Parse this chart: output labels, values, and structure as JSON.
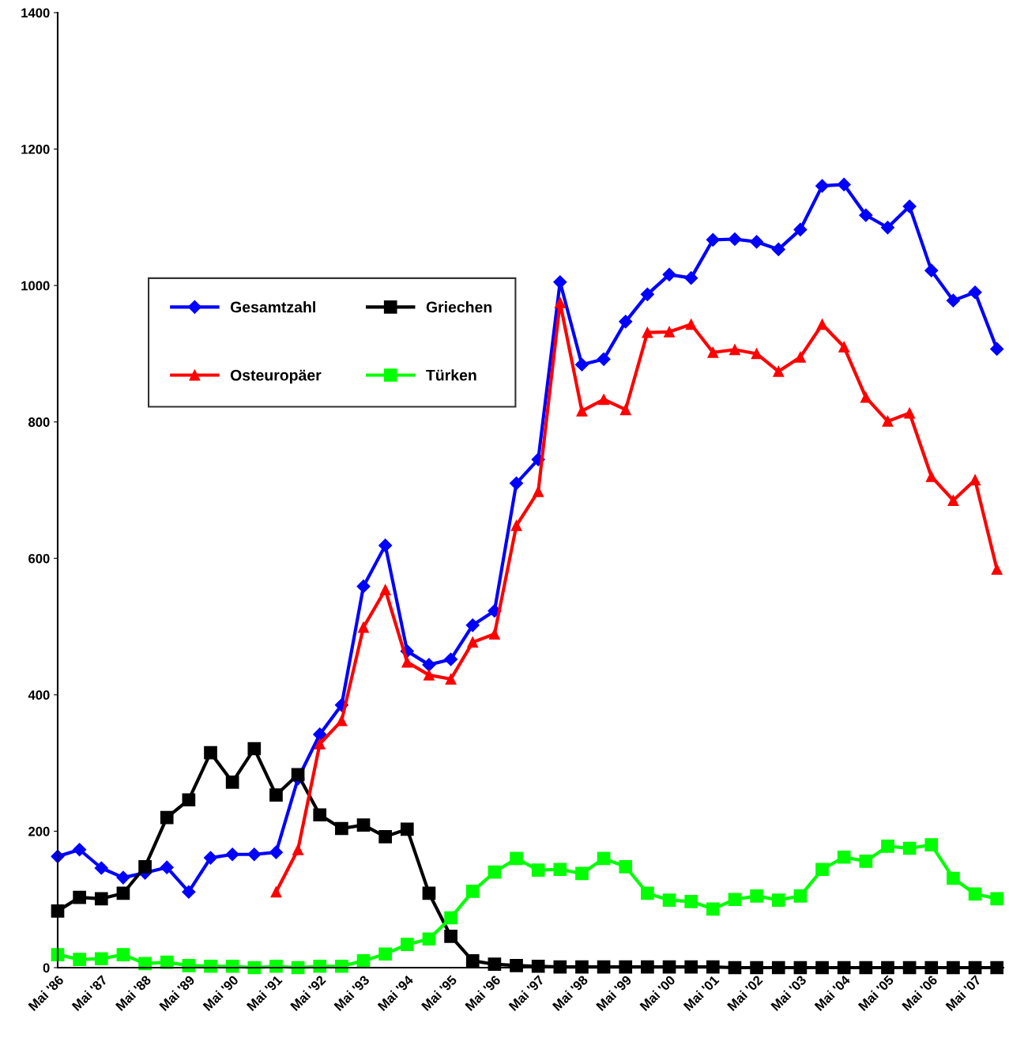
{
  "chart_data": {
    "type": "line",
    "categories": [
      "Mai '86",
      null,
      "Mai '87",
      null,
      "Mai '88",
      null,
      "Mai '89",
      null,
      "Mai '90",
      null,
      "Mai '91",
      null,
      "Mai '92",
      null,
      "Mai '93",
      null,
      "Mai '94",
      null,
      "Mai '95",
      null,
      "Mai '96",
      null,
      "Mai '97",
      null,
      "Mai '98",
      null,
      "Mai '99",
      null,
      "Mai '00",
      null,
      "Mai '01",
      null,
      "Mai '02",
      null,
      "Mai '03",
      null,
      "Mai '04",
      null,
      "Mai '05",
      null,
      "Mai '06",
      null,
      "Mai '07",
      null
    ],
    "series": [
      {
        "name": "Gesamtzahl",
        "color": "#0000ff",
        "marker": "diamond",
        "values": [
          163,
          173,
          146,
          132,
          139,
          147,
          111,
          161,
          166,
          166,
          169,
          277,
          342,
          385,
          559,
          619,
          464,
          444,
          452,
          502,
          523,
          710,
          745,
          1005,
          884,
          892,
          947,
          987,
          1016,
          1011,
          1067,
          1068,
          1064,
          1053,
          1082,
          1146,
          1148,
          1103,
          1085,
          1116,
          1022,
          978,
          990,
          907
        ]
      },
      {
        "name": "Griechen",
        "color": "#000000",
        "marker": "square",
        "values": [
          83,
          103,
          101,
          109,
          148,
          220,
          246,
          315,
          272,
          321,
          253,
          283,
          224,
          204,
          209,
          192,
          203,
          109,
          46,
          10,
          5,
          3,
          2,
          1,
          1,
          1,
          1,
          1,
          1,
          1,
          1,
          0,
          0,
          0,
          0,
          0,
          0,
          0,
          0,
          0,
          0,
          0,
          0,
          0
        ]
      },
      {
        "name": "Osteuropäer",
        "color": "#ff0000",
        "marker": "triangle",
        "values": [
          null,
          null,
          null,
          null,
          null,
          null,
          null,
          null,
          null,
          null,
          111,
          173,
          328,
          362,
          499,
          554,
          448,
          429,
          423,
          477,
          489,
          648,
          698,
          975,
          816,
          833,
          818,
          931,
          932,
          943,
          902,
          906,
          900,
          874,
          895,
          943,
          910,
          836,
          801,
          813,
          720,
          685,
          715,
          584
        ]
      },
      {
        "name": "Türken",
        "color": "#00ff00",
        "marker": "square",
        "values": [
          19,
          12,
          13,
          19,
          6,
          8,
          3,
          2,
          2,
          0,
          2,
          0,
          2,
          2,
          10,
          20,
          34,
          42,
          73,
          112,
          140,
          160,
          143,
          144,
          138,
          160,
          148,
          109,
          99,
          97,
          86,
          100,
          105,
          99,
          105,
          144,
          162,
          156,
          178,
          175,
          180,
          131,
          108,
          101
        ]
      }
    ],
    "ylim": [
      0,
      1400
    ],
    "yticks": [
      0,
      200,
      400,
      600,
      800,
      1000,
      1200,
      1400
    ],
    "grid": false,
    "legend": "upper left",
    "line_style": "solid"
  }
}
